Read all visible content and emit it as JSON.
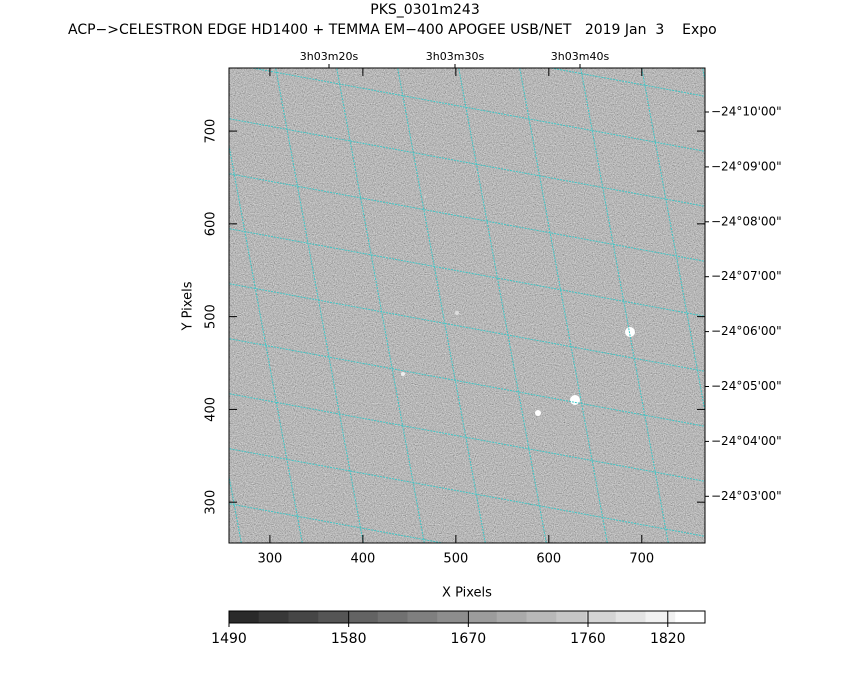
{
  "chart_data": {
    "type": "image",
    "title": "PKS_0301m243",
    "subtitle": "ACP−>CELESTRON EDGE HD1400 + TEMMA EM−400 APOGEE USB/NET   2019 Jan  3    Expo",
    "x_label": "X Pixels",
    "y_label": "Y Pixels",
    "xlim": [
      256,
      768
    ],
    "ylim": [
      256,
      768
    ],
    "xticks": [
      300,
      400,
      500,
      600,
      700
    ],
    "yticks": [
      300,
      400,
      500,
      600,
      700
    ],
    "ra_labels": [
      "3h03m20s",
      "3h03m30s",
      "3h03m40s"
    ],
    "dec_labels": [
      "−24°10'00\"",
      "−24°09'00\"",
      "−24°08'00\"",
      "−24°07'00\"",
      "−24°06'00\"",
      "−24°05'00\"",
      "−24°04'00\"",
      "−24°03'00\""
    ],
    "grid_color": "#3fc6c6",
    "colorbar": {
      "lim": [
        1490,
        1848
      ],
      "ticks": [
        1490,
        1580,
        1670,
        1760,
        1820
      ]
    }
  }
}
